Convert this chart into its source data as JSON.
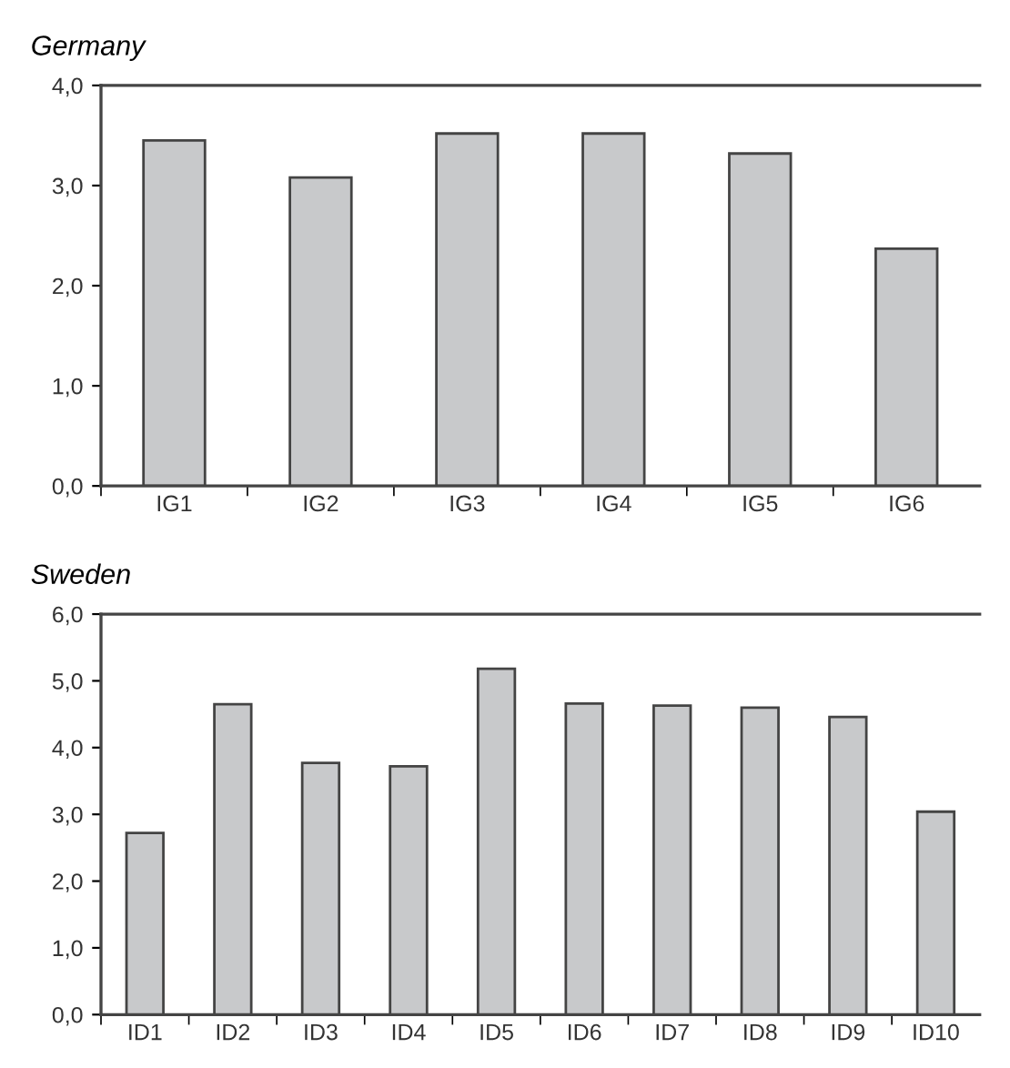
{
  "chart_data": [
    {
      "type": "bar",
      "title": "Germany",
      "categories": [
        "IG1",
        "IG2",
        "IG3",
        "IG4",
        "IG5",
        "IG6"
      ],
      "values": [
        3.45,
        3.08,
        3.52,
        3.52,
        3.32,
        2.37
      ],
      "color": "#c8c9cb",
      "ylim": [
        0,
        4
      ],
      "yticks": [
        {
          "value": 0,
          "label": "0,0"
        },
        {
          "value": 1,
          "label": "1,0"
        },
        {
          "value": 2,
          "label": "2,0"
        },
        {
          "value": 3,
          "label": "3,0"
        },
        {
          "value": 4,
          "label": "4,0"
        }
      ],
      "grid": false,
      "legend": false
    },
    {
      "type": "bar",
      "title": "Sweden",
      "categories": [
        "ID1",
        "ID2",
        "ID3",
        "ID4",
        "ID5",
        "ID6",
        "ID7",
        "ID8",
        "ID9",
        "ID10"
      ],
      "values": [
        2.72,
        4.65,
        3.77,
        3.72,
        5.18,
        4.66,
        4.63,
        4.6,
        4.46,
        3.04
      ],
      "color": "#c8c9cb",
      "ylim": [
        0,
        6
      ],
      "yticks": [
        {
          "value": 0,
          "label": "0,0"
        },
        {
          "value": 1,
          "label": "1,0"
        },
        {
          "value": 2,
          "label": "2,0"
        },
        {
          "value": 3,
          "label": "3,0"
        },
        {
          "value": 4,
          "label": "4,0"
        },
        {
          "value": 5,
          "label": "5,0"
        },
        {
          "value": 6,
          "label": "6,0"
        }
      ],
      "grid": false,
      "legend": false
    }
  ]
}
